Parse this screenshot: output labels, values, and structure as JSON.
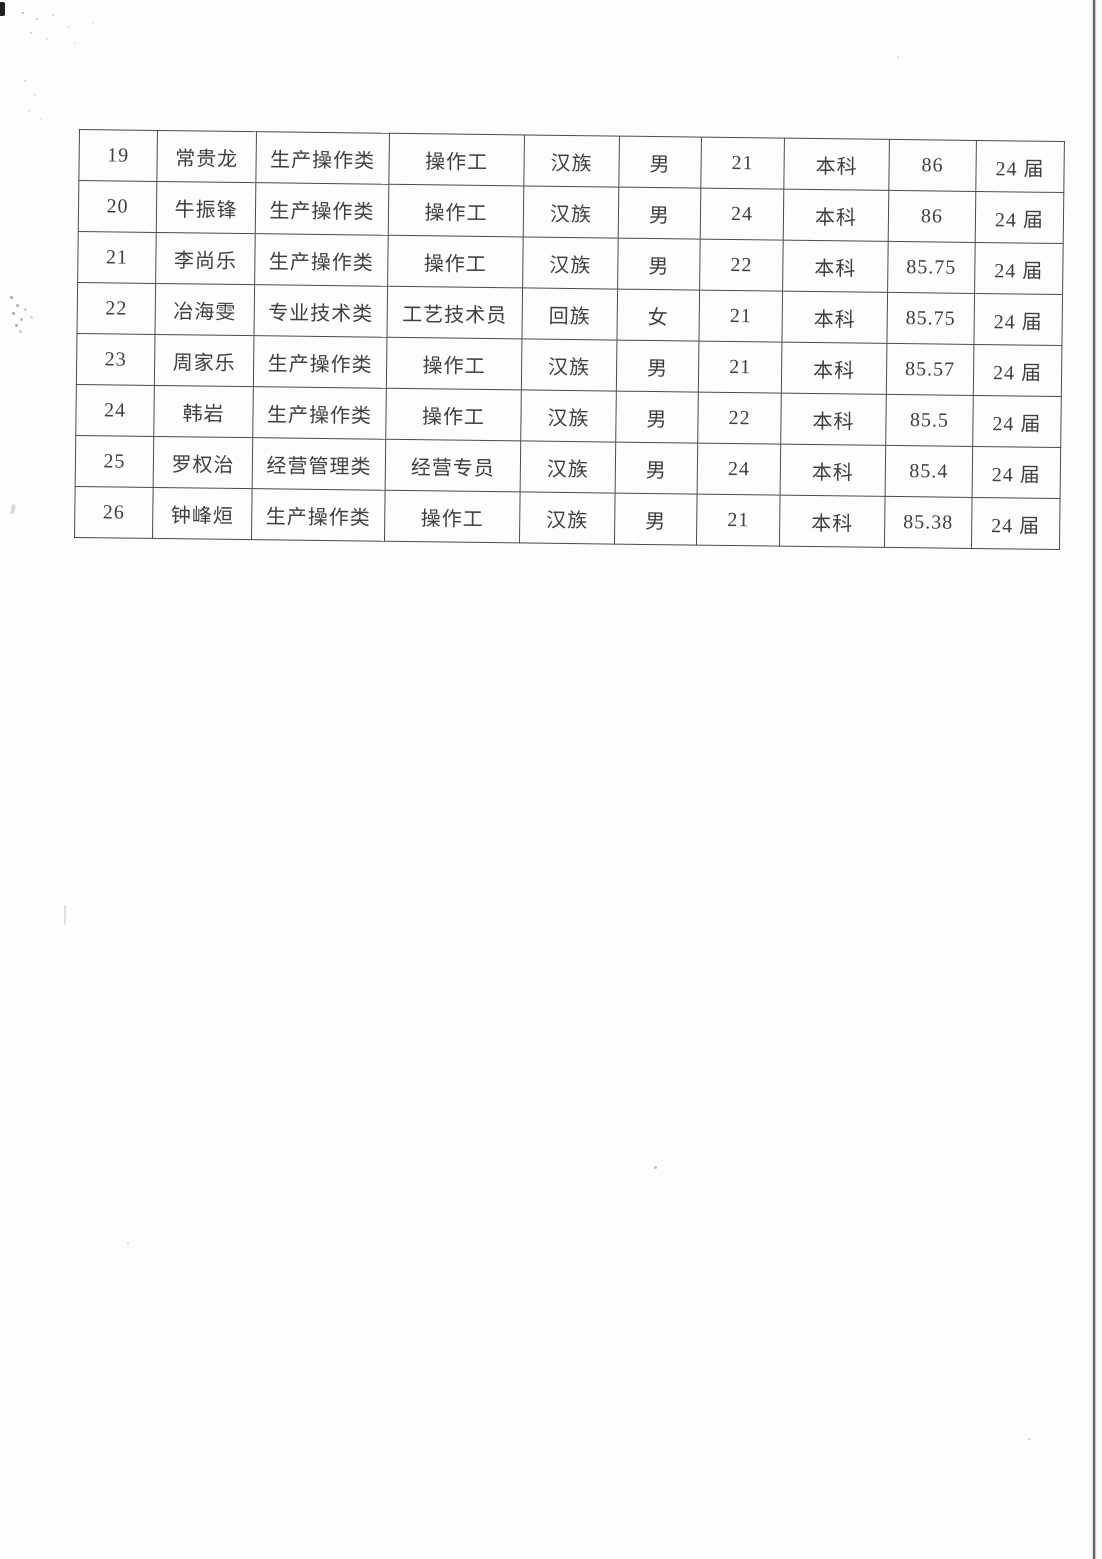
{
  "table": {
    "column_keys": [
      "no",
      "name",
      "category",
      "position",
      "ethnicity",
      "gender",
      "age",
      "education",
      "score",
      "cohort"
    ],
    "rows": [
      {
        "no": "19",
        "name": "常贵龙",
        "category": "生产操作类",
        "position": "操作工",
        "ethnicity": "汉族",
        "gender": "男",
        "age": "21",
        "education": "本科",
        "score": "86",
        "cohort": "24 届"
      },
      {
        "no": "20",
        "name": "牛振锋",
        "category": "生产操作类",
        "position": "操作工",
        "ethnicity": "汉族",
        "gender": "男",
        "age": "24",
        "education": "本科",
        "score": "86",
        "cohort": "24 届"
      },
      {
        "no": "21",
        "name": "李尚乐",
        "category": "生产操作类",
        "position": "操作工",
        "ethnicity": "汉族",
        "gender": "男",
        "age": "22",
        "education": "本科",
        "score": "85.75",
        "cohort": "24 届"
      },
      {
        "no": "22",
        "name": "冶海雯",
        "category": "专业技术类",
        "position": "工艺技术员",
        "ethnicity": "回族",
        "gender": "女",
        "age": "21",
        "education": "本科",
        "score": "85.75",
        "cohort": "24 届"
      },
      {
        "no": "23",
        "name": "周家乐",
        "category": "生产操作类",
        "position": "操作工",
        "ethnicity": "汉族",
        "gender": "男",
        "age": "21",
        "education": "本科",
        "score": "85.57",
        "cohort": "24 届"
      },
      {
        "no": "24",
        "name": "韩岩",
        "category": "生产操作类",
        "position": "操作工",
        "ethnicity": "汉族",
        "gender": "男",
        "age": "22",
        "education": "本科",
        "score": "85.5",
        "cohort": "24 届"
      },
      {
        "no": "25",
        "name": "罗权治",
        "category": "经营管理类",
        "position": "经营专员",
        "ethnicity": "汉族",
        "gender": "男",
        "age": "24",
        "education": "本科",
        "score": "85.4",
        "cohort": "24 届"
      },
      {
        "no": "26",
        "name": "钟峰烜",
        "category": "生产操作类",
        "position": "操作工",
        "ethnicity": "汉族",
        "gender": "男",
        "age": "21",
        "education": "本科",
        "score": "85.38",
        "cohort": "24 届"
      }
    ]
  },
  "colors": {
    "page_background": "#fdfdfc",
    "table_border": "#4b4b4b",
    "text": "#3f3f3f",
    "scan_edge_line": "#646464"
  }
}
